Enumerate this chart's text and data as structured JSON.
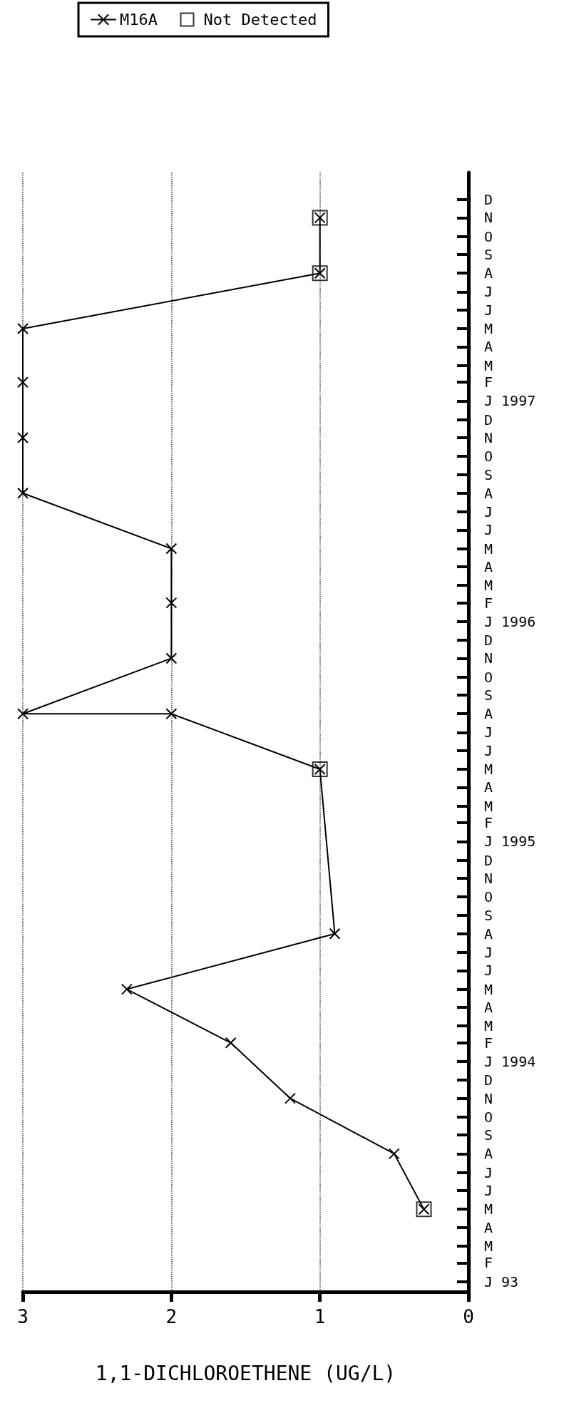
{
  "chart_data": {
    "type": "line",
    "orientation": "horizontal",
    "xlabel": "1,1-DICHLOROETHENE (UG/L)",
    "ylim": [
      "1992-12-15",
      "1998-01-15"
    ],
    "yticks": [
      {
        "value": "1993-01",
        "label": "J 93"
      },
      {
        "value": "1993-02",
        "label": "F"
      },
      {
        "value": "1993-03",
        "label": "M"
      },
      {
        "value": "1993-04",
        "label": "A"
      },
      {
        "value": "1993-05",
        "label": "M"
      },
      {
        "value": "1993-06",
        "label": "J"
      },
      {
        "value": "1993-07",
        "label": "J"
      },
      {
        "value": "1993-08",
        "label": "A"
      },
      {
        "value": "1993-09",
        "label": "S"
      },
      {
        "value": "1993-10",
        "label": "O"
      },
      {
        "value": "1993-11",
        "label": "N"
      },
      {
        "value": "1993-12",
        "label": "D"
      },
      {
        "value": "1994-01",
        "label": "J 1994"
      },
      {
        "value": "1994-02",
        "label": "F"
      },
      {
        "value": "1994-03",
        "label": "M"
      },
      {
        "value": "1994-04",
        "label": "A"
      },
      {
        "value": "1994-05",
        "label": "M"
      },
      {
        "value": "1994-06",
        "label": "J"
      },
      {
        "value": "1994-07",
        "label": "J"
      },
      {
        "value": "1994-08",
        "label": "A"
      },
      {
        "value": "1994-09",
        "label": "S"
      },
      {
        "value": "1994-10",
        "label": "O"
      },
      {
        "value": "1994-11",
        "label": "N"
      },
      {
        "value": "1994-12",
        "label": "D"
      },
      {
        "value": "1995-01",
        "label": "J 1995"
      },
      {
        "value": "1995-02",
        "label": "F"
      },
      {
        "value": "1995-03",
        "label": "M"
      },
      {
        "value": "1995-04",
        "label": "A"
      },
      {
        "value": "1995-05",
        "label": "M"
      },
      {
        "value": "1995-06",
        "label": "J"
      },
      {
        "value": "1995-07",
        "label": "J"
      },
      {
        "value": "1995-08",
        "label": "A"
      },
      {
        "value": "1995-09",
        "label": "S"
      },
      {
        "value": "1995-10",
        "label": "O"
      },
      {
        "value": "1995-11",
        "label": "N"
      },
      {
        "value": "1995-12",
        "label": "D"
      },
      {
        "value": "1996-01",
        "label": "J 1996"
      },
      {
        "value": "1996-02",
        "label": "F"
      },
      {
        "value": "1996-03",
        "label": "M"
      },
      {
        "value": "1996-04",
        "label": "A"
      },
      {
        "value": "1996-05",
        "label": "M"
      },
      {
        "value": "1996-06",
        "label": "J"
      },
      {
        "value": "1996-07",
        "label": "J"
      },
      {
        "value": "1996-08",
        "label": "A"
      },
      {
        "value": "1996-09",
        "label": "S"
      },
      {
        "value": "1996-10",
        "label": "O"
      },
      {
        "value": "1996-11",
        "label": "N"
      },
      {
        "value": "1996-12",
        "label": "D"
      },
      {
        "value": "1997-01",
        "label": "J 1997"
      },
      {
        "value": "1997-02",
        "label": "F"
      },
      {
        "value": "1997-03",
        "label": "M"
      },
      {
        "value": "1997-04",
        "label": "A"
      },
      {
        "value": "1997-05",
        "label": "M"
      },
      {
        "value": "1997-06",
        "label": "J"
      },
      {
        "value": "1997-07",
        "label": "J"
      },
      {
        "value": "1997-08",
        "label": "A"
      },
      {
        "value": "1997-09",
        "label": "S"
      },
      {
        "value": "1997-10",
        "label": "O"
      },
      {
        "value": "1997-11",
        "label": "N"
      },
      {
        "value": "1997-12",
        "label": "D"
      }
    ],
    "xlim": [
      3,
      0
    ],
    "xticks": [
      3,
      2,
      1,
      0
    ],
    "grid": "x",
    "legend": "top left",
    "series": [
      {
        "name": "M16A",
        "color": "#000000",
        "marker": "cross",
        "line_style": "solid",
        "x": [
          "1993-05",
          "1993-08",
          "1993-11",
          "1994-02",
          "1994-05",
          "1994-08",
          "1995-05",
          "1995-08",
          "1995-08",
          "1995-11",
          "1996-02",
          "1996-05",
          "1996-08",
          "1996-11",
          "1997-02",
          "1997-05",
          "1997-08",
          "1997-11"
        ],
        "values": [
          0.3,
          0.5,
          1.2,
          1.6,
          2.3,
          0.9,
          1.0,
          2.0,
          3.0,
          2.0,
          2.0,
          2.0,
          3.0,
          3.0,
          3.0,
          3.0,
          1.0,
          1.0
        ]
      },
      {
        "name": "Not Detected",
        "type": "scatter",
        "color": "#000000",
        "marker": "square",
        "x": [
          "1993-05",
          "1995-05",
          "1997-08",
          "1997-11"
        ],
        "values": [
          0.3,
          1.0,
          1.0,
          1.0
        ]
      }
    ]
  }
}
